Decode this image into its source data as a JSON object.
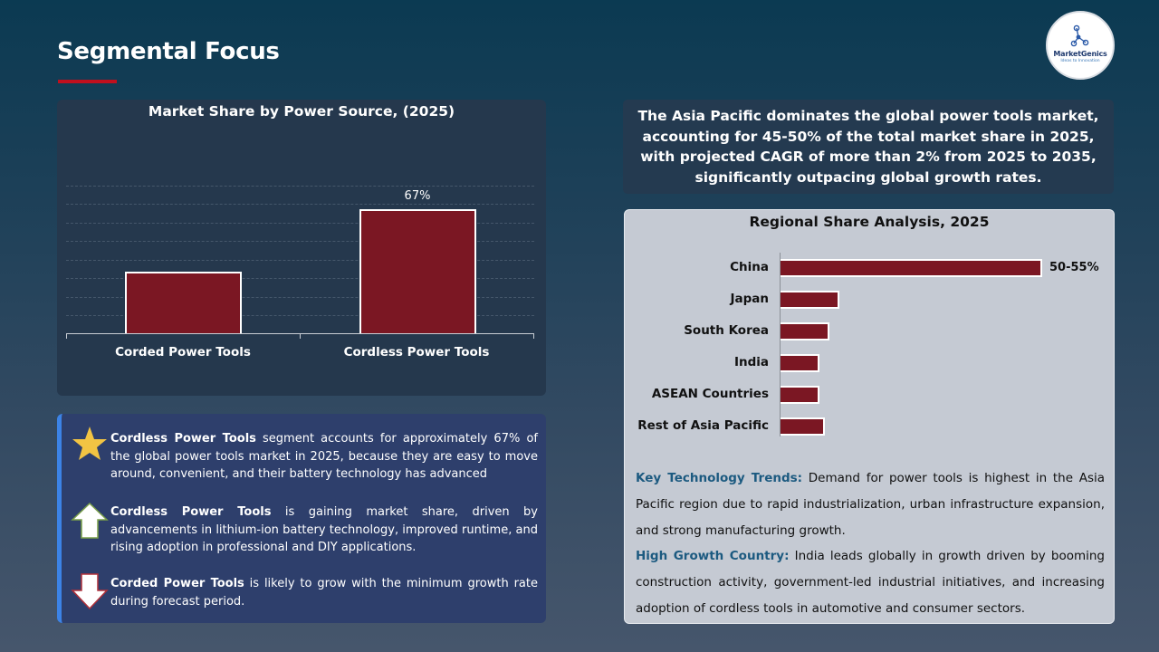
{
  "header": {
    "title": "Segmental Focus",
    "logo": {
      "brand": "MarketGenics",
      "tagline": "Ideas to Innovation"
    }
  },
  "colors": {
    "accent_red": "#c0101e",
    "bar_fill": "#7b1723",
    "bar_border": "#ffffff",
    "info_border": "#3c83e6",
    "key_text": "#1c5a80"
  },
  "chart_data": [
    {
      "type": "bar",
      "title": "Market Share by Power Source, (2025)",
      "categories": [
        "Corded Power Tools",
        "Cordless Power Tools"
      ],
      "values": [
        33,
        67
      ],
      "data_labels": [
        "",
        "67%"
      ],
      "xlabel": "",
      "ylabel": "",
      "ylim": [
        0,
        80
      ],
      "grid": true,
      "legend": "none"
    },
    {
      "type": "bar",
      "orientation": "horizontal",
      "title": "Regional Share Analysis, 2025",
      "categories": [
        "China",
        "Japan",
        "South Korea",
        "India",
        "ASEAN Countries",
        "Rest of Asia Pacific"
      ],
      "values": [
        52.5,
        11,
        9,
        7,
        7,
        8
      ],
      "data_labels": [
        "50-55%",
        "",
        "",
        "",
        "",
        ""
      ],
      "grid": false,
      "legend": "none"
    }
  ],
  "left_chart": {
    "title": "Market Share by Power Source, (2025)",
    "bars": [
      {
        "label": "Corded Power Tools",
        "value": 33,
        "display": ""
      },
      {
        "label": "Cordless Power Tools",
        "value": 67,
        "display": "67%"
      }
    ]
  },
  "insights": [
    {
      "icon": "star-icon",
      "bold": "Cordless Power Tools",
      "text": " segment accounts for approximately 67% of the global power tools market in 2025, because they are easy to move around, convenient, and their battery technology has advanced"
    },
    {
      "icon": "arrow-up-icon",
      "bold": "Cordless Power Tools",
      "text": " is gaining market share, driven by advancements in lithium-ion battery technology, improved runtime, and rising adoption in professional and DIY applications."
    },
    {
      "icon": "arrow-down-icon",
      "bold": "Corded Power Tools",
      "text": " is likely to grow with the minimum growth rate during forecast period."
    }
  ],
  "headline": "The Asia Pacific dominates the global power tools market, accounting for 45-50% of the total market share in 2025, with projected CAGR of more than 2% from 2025 to 2035, significantly outpacing global growth rates.",
  "regional": {
    "title": "Regional Share Analysis, 2025",
    "rows": [
      {
        "label": "China",
        "value": 52.5,
        "display": "50-55%"
      },
      {
        "label": "Japan",
        "value": 11,
        "display": ""
      },
      {
        "label": "South Korea",
        "value": 9,
        "display": ""
      },
      {
        "label": "India",
        "value": 7,
        "display": ""
      },
      {
        "label": "ASEAN Countries",
        "value": 7,
        "display": ""
      },
      {
        "label": "Rest of Asia Pacific",
        "value": 8,
        "display": ""
      }
    ],
    "key_trends_label": "Key Technology Trends:",
    "key_trends_text": " Demand for power tools is highest in the Asia Pacific region due to rapid industrialization, urban infrastructure expansion, and strong manufacturing growth.",
    "high_growth_label": "High Growth Country:",
    "high_growth_text": " India leads globally in growth driven by booming construction activity, government-led industrial initiatives, and increasing adoption of cordless tools in automotive and consumer sectors."
  }
}
